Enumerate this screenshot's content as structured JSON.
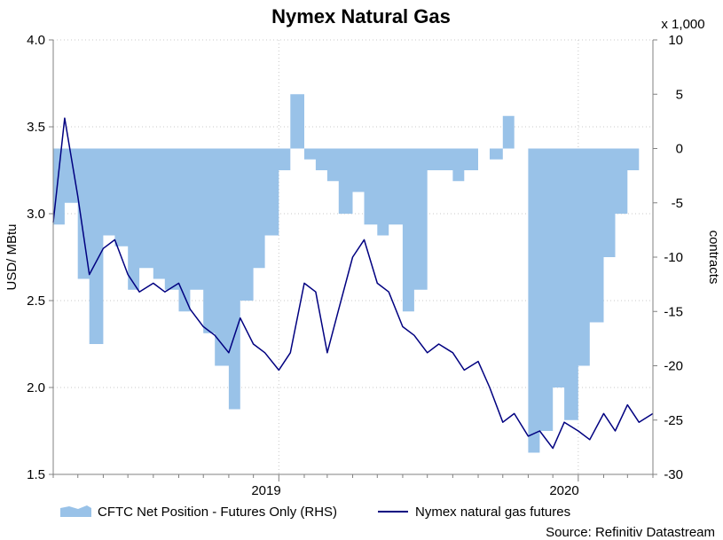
{
  "chart_data": {
    "type": "line",
    "title": "Nymex Natural Gas",
    "left_axis": {
      "label": "USD/ MBtu",
      "range": [
        1.5,
        4.0
      ],
      "ticks": [
        "4.0",
        "3.5",
        "3.0",
        "2.5",
        "2.0",
        "1.5"
      ]
    },
    "right_axis": {
      "label": "contracts",
      "multiplier_label": "x 1,000",
      "range": [
        -30,
        10
      ],
      "ticks": [
        "10",
        "5",
        "0",
        "-5",
        "-10",
        "-15",
        "-20",
        "-25",
        "-30"
      ]
    },
    "x_axis": {
      "range": [
        "2018-04-01",
        "2020-04-01"
      ],
      "ticks": [
        "2019",
        "2020"
      ]
    },
    "grid": true,
    "legend": "bottom",
    "series": [
      {
        "name": "CFTC Net Position - Futures Only (RHS)",
        "type": "area",
        "axis": "right",
        "color": "#99c2e8",
        "x": [
          "2018-04-01",
          "2018-04-15",
          "2018-05-01",
          "2018-05-15",
          "2018-06-01",
          "2018-06-15",
          "2018-07-01",
          "2018-07-15",
          "2018-08-01",
          "2018-08-15",
          "2018-09-01",
          "2018-09-15",
          "2018-10-01",
          "2018-10-15",
          "2018-11-01",
          "2018-11-15",
          "2018-12-01",
          "2018-12-15",
          "2019-01-01",
          "2019-01-15",
          "2019-02-01",
          "2019-02-15",
          "2019-03-01",
          "2019-03-15",
          "2019-04-01",
          "2019-04-15",
          "2019-05-01",
          "2019-05-15",
          "2019-06-01",
          "2019-06-15",
          "2019-07-01",
          "2019-07-15",
          "2019-08-01",
          "2019-08-15",
          "2019-09-01",
          "2019-09-15",
          "2019-10-01",
          "2019-10-15",
          "2019-11-01",
          "2019-11-15",
          "2019-12-01",
          "2019-12-15",
          "2020-01-01",
          "2020-01-15",
          "2020-02-01",
          "2020-02-15",
          "2020-03-01",
          "2020-03-15",
          "2020-04-01"
        ],
        "values": [
          -7,
          -5,
          -12,
          -18,
          -8,
          -9,
          -13,
          -11,
          -12,
          -13,
          -15,
          -13,
          -17,
          -20,
          -24,
          -14,
          -11,
          -8,
          -2,
          5,
          -1,
          -2,
          -3,
          -6,
          -4,
          -7,
          -8,
          -7,
          -15,
          -13,
          -2,
          -2,
          -3,
          -2,
          0,
          -1,
          3,
          0,
          -28,
          -26,
          -22,
          -25,
          -20,
          -16,
          -10,
          -6,
          -2,
          0,
          2
        ]
      },
      {
        "name": "Nymex natural gas futures",
        "type": "line",
        "axis": "left",
        "color": "#000080",
        "x": [
          "2018-04-01",
          "2018-04-15",
          "2018-05-01",
          "2018-05-15",
          "2018-06-01",
          "2018-06-15",
          "2018-07-01",
          "2018-07-15",
          "2018-08-01",
          "2018-08-15",
          "2018-09-01",
          "2018-09-15",
          "2018-10-01",
          "2018-10-15",
          "2018-11-01",
          "2018-11-15",
          "2018-12-01",
          "2018-12-15",
          "2019-01-01",
          "2019-01-15",
          "2019-02-01",
          "2019-02-15",
          "2019-03-01",
          "2019-03-15",
          "2019-04-01",
          "2019-04-15",
          "2019-05-01",
          "2019-05-15",
          "2019-06-01",
          "2019-06-15",
          "2019-07-01",
          "2019-07-15",
          "2019-08-01",
          "2019-08-15",
          "2019-09-01",
          "2019-09-15",
          "2019-10-01",
          "2019-10-15",
          "2019-11-01",
          "2019-11-15",
          "2019-12-01",
          "2019-12-15",
          "2020-01-01",
          "2020-01-15",
          "2020-02-01",
          "2020-02-15",
          "2020-03-01",
          "2020-03-15",
          "2020-04-01"
        ],
        "values": [
          2.95,
          3.55,
          3.1,
          2.65,
          2.8,
          2.85,
          2.65,
          2.55,
          2.6,
          2.55,
          2.6,
          2.45,
          2.35,
          2.3,
          2.2,
          2.4,
          2.25,
          2.2,
          2.1,
          2.2,
          2.6,
          2.55,
          2.2,
          2.45,
          2.75,
          2.85,
          2.6,
          2.55,
          2.35,
          2.3,
          2.2,
          2.25,
          2.2,
          2.1,
          2.15,
          2.0,
          1.8,
          1.85,
          1.72,
          1.75,
          1.65,
          1.8,
          1.75,
          1.7,
          1.85,
          1.75,
          1.9,
          1.8,
          1.85
        ]
      }
    ],
    "source": "Source: Refinitiv Datastream"
  }
}
